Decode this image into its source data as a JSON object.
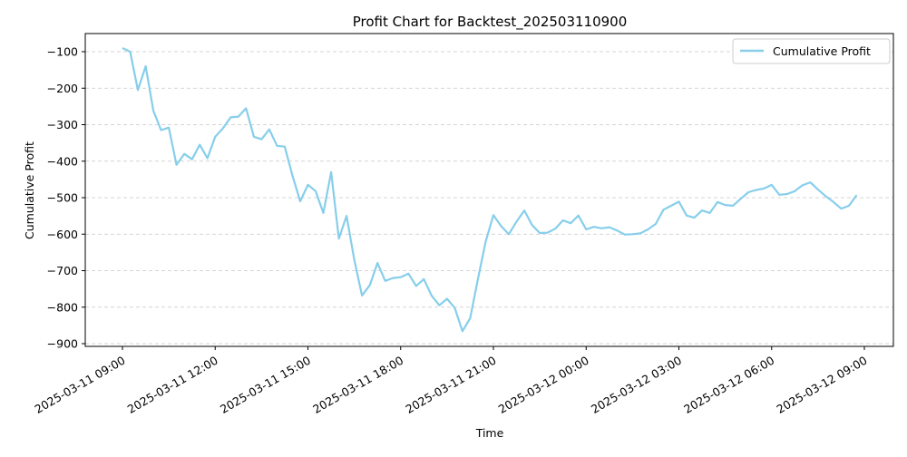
{
  "chart_data": {
    "type": "line",
    "title": "Profit Chart for Backtest_202503110900",
    "xlabel": "Time",
    "ylabel": "Cumulative Profit",
    "legend": {
      "position": "top-right",
      "entries": [
        "Cumulative Profit"
      ]
    },
    "grid": {
      "x": false,
      "y": true,
      "style": "dashed"
    },
    "ylim": [
      -900,
      -70
    ],
    "xlim": [
      "2025-03-11 09:00",
      "2025-03-12 09:00"
    ],
    "x_ticks": [
      "2025-03-11 09:00",
      "2025-03-11 12:00",
      "2025-03-11 15:00",
      "2025-03-11 18:00",
      "2025-03-11 21:00",
      "2025-03-12 00:00",
      "2025-03-12 03:00",
      "2025-03-12 06:00",
      "2025-03-12 09:00"
    ],
    "y_ticks": [
      -900,
      -800,
      -700,
      -600,
      -500,
      -400,
      -300,
      -200,
      -100
    ],
    "series": [
      {
        "name": "Cumulative Profit",
        "color": "#87ceeb",
        "x": [
          "2025-03-11 09:00",
          "2025-03-11 09:15",
          "2025-03-11 09:30",
          "2025-03-11 09:45",
          "2025-03-11 10:00",
          "2025-03-11 10:15",
          "2025-03-11 10:30",
          "2025-03-11 10:45",
          "2025-03-11 11:00",
          "2025-03-11 11:15",
          "2025-03-11 11:30",
          "2025-03-11 11:45",
          "2025-03-11 12:00",
          "2025-03-11 12:15",
          "2025-03-11 12:30",
          "2025-03-11 12:45",
          "2025-03-11 13:00",
          "2025-03-11 13:15",
          "2025-03-11 13:30",
          "2025-03-11 13:45",
          "2025-03-11 14:00",
          "2025-03-11 14:15",
          "2025-03-11 14:30",
          "2025-03-11 14:45",
          "2025-03-11 15:00",
          "2025-03-11 15:15",
          "2025-03-11 15:30",
          "2025-03-11 15:45",
          "2025-03-11 16:00",
          "2025-03-11 16:15",
          "2025-03-11 16:30",
          "2025-03-11 16:45",
          "2025-03-11 17:00",
          "2025-03-11 17:15",
          "2025-03-11 17:30",
          "2025-03-11 17:45",
          "2025-03-11 18:00",
          "2025-03-11 18:15",
          "2025-03-11 18:30",
          "2025-03-11 18:45",
          "2025-03-11 19:00",
          "2025-03-11 19:15",
          "2025-03-11 19:30",
          "2025-03-11 19:45",
          "2025-03-11 20:00",
          "2025-03-11 20:15",
          "2025-03-11 20:30",
          "2025-03-11 20:45",
          "2025-03-11 21:00",
          "2025-03-11 21:15",
          "2025-03-11 21:30",
          "2025-03-11 21:45",
          "2025-03-11 22:00",
          "2025-03-11 22:15",
          "2025-03-11 22:30",
          "2025-03-11 22:45",
          "2025-03-11 23:00",
          "2025-03-11 23:15",
          "2025-03-11 23:30",
          "2025-03-11 23:45",
          "2025-03-12 00:00",
          "2025-03-12 00:15",
          "2025-03-12 00:30",
          "2025-03-12 00:45",
          "2025-03-12 01:00",
          "2025-03-12 01:15",
          "2025-03-12 01:30",
          "2025-03-12 01:45",
          "2025-03-12 02:00",
          "2025-03-12 02:15",
          "2025-03-12 02:30",
          "2025-03-12 02:45",
          "2025-03-12 03:00",
          "2025-03-12 03:15",
          "2025-03-12 03:30",
          "2025-03-12 03:45",
          "2025-03-12 04:00",
          "2025-03-12 04:15",
          "2025-03-12 04:30",
          "2025-03-12 04:45",
          "2025-03-12 05:00",
          "2025-03-12 05:15",
          "2025-03-12 05:30",
          "2025-03-12 05:45",
          "2025-03-12 06:00",
          "2025-03-12 06:15",
          "2025-03-12 06:30",
          "2025-03-12 06:45",
          "2025-03-12 07:00",
          "2025-03-12 07:15",
          "2025-03-12 07:30",
          "2025-03-12 07:45",
          "2025-03-12 08:00",
          "2025-03-12 08:15",
          "2025-03-12 08:30",
          "2025-03-12 08:45"
        ],
        "values": [
          -90,
          -100,
          -205,
          -140,
          -262,
          -315,
          -308,
          -410,
          -380,
          -395,
          -355,
          -392,
          -333,
          -310,
          -280,
          -278,
          -255,
          -333,
          -340,
          -313,
          -358,
          -360,
          -440,
          -510,
          -465,
          -482,
          -542,
          -430,
          -612,
          -550,
          -670,
          -768,
          -740,
          -679,
          -728,
          -720,
          -718,
          -708,
          -742,
          -723,
          -768,
          -795,
          -777,
          -802,
          -866,
          -830,
          -722,
          -620,
          -548,
          -578,
          -600,
          -565,
          -535,
          -575,
          -597,
          -596,
          -585,
          -562,
          -570,
          -549,
          -587,
          -580,
          -584,
          -581,
          -590,
          -601,
          -600,
          -598,
          -587,
          -572,
          -533,
          -522,
          -511,
          -549,
          -555,
          -535,
          -542,
          -512,
          -520,
          -522,
          -503,
          -485,
          -479,
          -475,
          -465,
          -492,
          -490,
          -482,
          -466,
          -458,
          -478,
          -496,
          -512,
          -530,
          -522,
          -493
        ]
      }
    ]
  }
}
